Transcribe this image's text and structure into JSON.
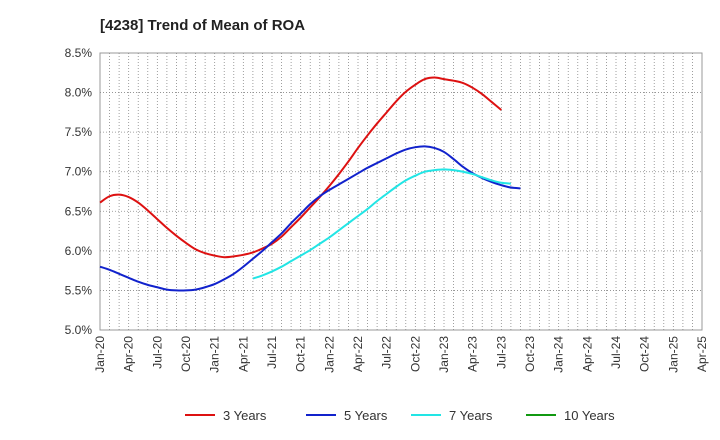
{
  "chart_data": {
    "type": "line",
    "title": "[4238]  Trend of Mean of ROA",
    "xlabel": "",
    "ylabel": "",
    "x_ticks": [
      "Jan-20",
      "Apr-20",
      "Jul-20",
      "Oct-20",
      "Jan-21",
      "Apr-21",
      "Jul-21",
      "Oct-21",
      "Jan-22",
      "Apr-22",
      "Jul-22",
      "Oct-22",
      "Jan-23",
      "Apr-23",
      "Jul-23",
      "Oct-23",
      "Jan-24",
      "Apr-24",
      "Jul-24",
      "Oct-24",
      "Jan-25",
      "Apr-25"
    ],
    "y_ticks": [
      "5.0%",
      "5.5%",
      "6.0%",
      "6.5%",
      "7.0%",
      "7.5%",
      "8.0%",
      "8.5%"
    ],
    "ylim": [
      5.0,
      8.5
    ],
    "grid": true,
    "legend_position": "bottom",
    "series": [
      {
        "name": "3 Years",
        "color": "#dd1111",
        "start_index": 0,
        "values": [
          6.61,
          6.69,
          6.71,
          6.68,
          6.61,
          6.51,
          6.4,
          6.29,
          6.19,
          6.1,
          6.02,
          5.97,
          5.94,
          5.92,
          5.93,
          5.95,
          5.98,
          6.03,
          6.09,
          6.18,
          6.3,
          6.42,
          6.55,
          6.68,
          6.82,
          6.97,
          7.13,
          7.3,
          7.46,
          7.61,
          7.75,
          7.89,
          8.01,
          8.1,
          8.17,
          8.19,
          8.17,
          8.15,
          8.12,
          8.06,
          7.98,
          7.88,
          7.78
        ]
      },
      {
        "name": "5 Years",
        "color": "#1122cc",
        "start_index": 0,
        "values": [
          5.8,
          5.76,
          5.71,
          5.66,
          5.61,
          5.57,
          5.54,
          5.51,
          5.5,
          5.5,
          5.51,
          5.54,
          5.58,
          5.64,
          5.71,
          5.8,
          5.9,
          6.0,
          6.11,
          6.22,
          6.35,
          6.47,
          6.59,
          6.69,
          6.77,
          6.84,
          6.91,
          6.98,
          7.05,
          7.11,
          7.17,
          7.23,
          7.28,
          7.31,
          7.32,
          7.3,
          7.25,
          7.16,
          7.06,
          6.98,
          6.92,
          6.87,
          6.83,
          6.8,
          6.79
        ]
      },
      {
        "name": "7 Years",
        "color": "#22e5e5",
        "start_index": 16,
        "values": [
          5.65,
          5.69,
          5.74,
          5.8,
          5.87,
          5.94,
          6.01,
          6.09,
          6.17,
          6.26,
          6.35,
          6.44,
          6.53,
          6.63,
          6.72,
          6.81,
          6.89,
          6.95,
          7.0,
          7.02,
          7.03,
          7.02,
          7.0,
          6.97,
          6.93,
          6.89,
          6.86,
          6.85
        ]
      },
      {
        "name": "10 Years",
        "color": "#119911",
        "start_index": 0,
        "values": []
      }
    ]
  }
}
